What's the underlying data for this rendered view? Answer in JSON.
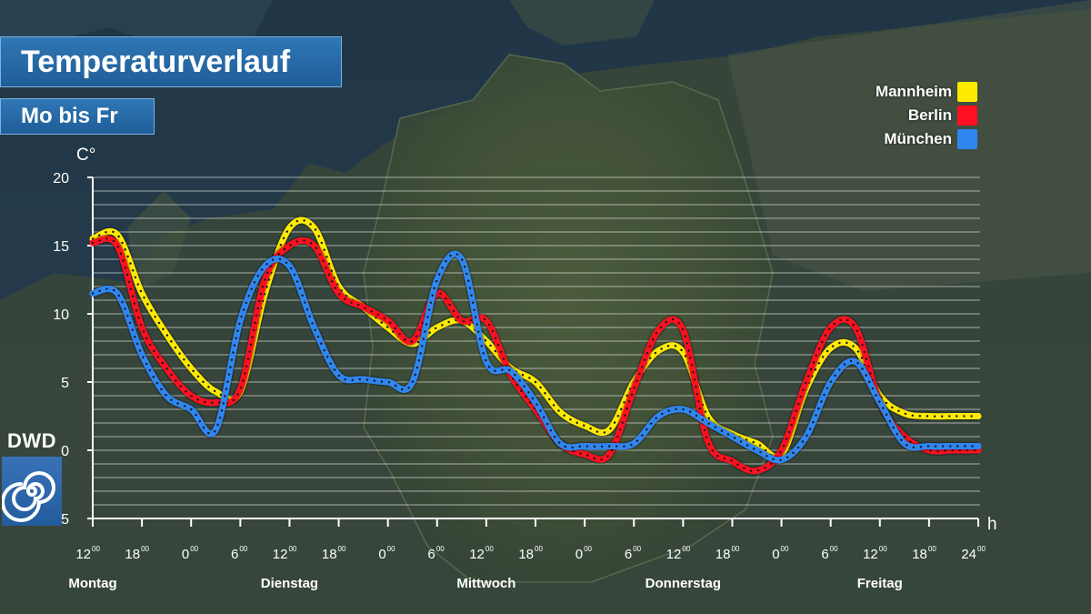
{
  "header": {
    "title": "Temperaturverlauf",
    "subtitle": "Mo bis Fr"
  },
  "logo": {
    "text": "DWD",
    "icon": "dwd-spiral-icon"
  },
  "colors": {
    "Mannheim": "#ffea00",
    "Berlin": "#ff0f1f",
    "München": "#2f86f0",
    "title_bg": "#2a6cab"
  },
  "chart_data": {
    "type": "line",
    "ylabel": "C°",
    "xlabel": "h",
    "ylim": [
      -5,
      20
    ],
    "yticks": [
      -5,
      0,
      5,
      10,
      15,
      20
    ],
    "xlim": [
      0,
      108
    ],
    "grid": true,
    "legend_position": "top-right",
    "x_ticks": [
      {
        "x": 0,
        "hour": "12",
        "min": "00"
      },
      {
        "x": 6,
        "hour": "18",
        "min": "00"
      },
      {
        "x": 12,
        "hour": "0",
        "min": "00"
      },
      {
        "x": 18,
        "hour": "6",
        "min": "00"
      },
      {
        "x": 24,
        "hour": "12",
        "min": "00"
      },
      {
        "x": 30,
        "hour": "18",
        "min": "00"
      },
      {
        "x": 36,
        "hour": "0",
        "min": "00"
      },
      {
        "x": 42,
        "hour": "6",
        "min": "00"
      },
      {
        "x": 48,
        "hour": "12",
        "min": "00"
      },
      {
        "x": 54,
        "hour": "18",
        "min": "00"
      },
      {
        "x": 60,
        "hour": "0",
        "min": "00"
      },
      {
        "x": 66,
        "hour": "6",
        "min": "00"
      },
      {
        "x": 72,
        "hour": "12",
        "min": "00"
      },
      {
        "x": 78,
        "hour": "18",
        "min": "00"
      },
      {
        "x": 84,
        "hour": "0",
        "min": "00"
      },
      {
        "x": 90,
        "hour": "6",
        "min": "00"
      },
      {
        "x": 96,
        "hour": "12",
        "min": "00"
      },
      {
        "x": 102,
        "hour": "18",
        "min": "00"
      },
      {
        "x": 108,
        "hour": "24",
        "min": "00"
      }
    ],
    "days": [
      {
        "x": 0,
        "label": "Montag"
      },
      {
        "x": 24,
        "label": "Dienstag"
      },
      {
        "x": 48,
        "label": "Mittwoch"
      },
      {
        "x": 72,
        "label": "Donnerstag"
      },
      {
        "x": 96,
        "label": "Freitag"
      }
    ],
    "series": [
      {
        "name": "Mannheim",
        "x": [
          0,
          3,
          6,
          9,
          12,
          15,
          18,
          21,
          24,
          27,
          30,
          33,
          36,
          39,
          42,
          45,
          48,
          51,
          54,
          57,
          60,
          63,
          66,
          69,
          72,
          75,
          78,
          81,
          84,
          87,
          90,
          93,
          96,
          99,
          102,
          105,
          108
        ],
        "y": [
          15.5,
          15.8,
          11.5,
          8.5,
          6.0,
          4.3,
          4.3,
          11.5,
          16.3,
          16.3,
          12.0,
          10.5,
          9.0,
          7.8,
          9.0,
          9.5,
          8.0,
          6.0,
          5.0,
          2.8,
          1.8,
          1.5,
          5.0,
          7.3,
          7.2,
          2.5,
          1.2,
          0.5,
          -0.3,
          4.5,
          7.5,
          7.5,
          4.0,
          2.7,
          2.5,
          2.5,
          2.5
        ]
      },
      {
        "name": "Berlin",
        "x": [
          0,
          3,
          6,
          9,
          12,
          15,
          18,
          21,
          24,
          27,
          30,
          33,
          36,
          39,
          42,
          45,
          48,
          51,
          54,
          57,
          60,
          63,
          66,
          69,
          72,
          75,
          78,
          81,
          84,
          87,
          90,
          93,
          96,
          99,
          102,
          105,
          108
        ],
        "y": [
          15.2,
          15.0,
          9.0,
          6.0,
          4.0,
          3.5,
          4.5,
          12.5,
          15.0,
          15.0,
          11.5,
          10.5,
          9.5,
          8.0,
          11.5,
          9.5,
          9.5,
          5.5,
          3.0,
          0.5,
          -0.3,
          -0.3,
          4.5,
          8.8,
          8.8,
          0.7,
          -0.8,
          -1.5,
          0.0,
          5.0,
          9.0,
          9.0,
          3.5,
          1.0,
          0.0,
          0.0,
          0.0
        ]
      },
      {
        "name": "München",
        "x": [
          0,
          3,
          6,
          9,
          12,
          15,
          18,
          21,
          24,
          27,
          30,
          33,
          36,
          39,
          42,
          45,
          48,
          51,
          54,
          57,
          60,
          63,
          66,
          69,
          72,
          75,
          78,
          81,
          84,
          87,
          90,
          93,
          96,
          99,
          102,
          105,
          108
        ],
        "y": [
          11.5,
          11.5,
          7.0,
          4.0,
          3.0,
          1.5,
          9.5,
          13.5,
          13.5,
          9.0,
          5.5,
          5.2,
          5.0,
          5.0,
          12.5,
          14.0,
          6.5,
          5.8,
          3.5,
          0.5,
          0.3,
          0.3,
          0.5,
          2.5,
          3.0,
          2.0,
          1.0,
          0.0,
          -0.7,
          1.0,
          5.0,
          6.5,
          3.5,
          0.5,
          0.3,
          0.3,
          0.3
        ]
      }
    ]
  }
}
